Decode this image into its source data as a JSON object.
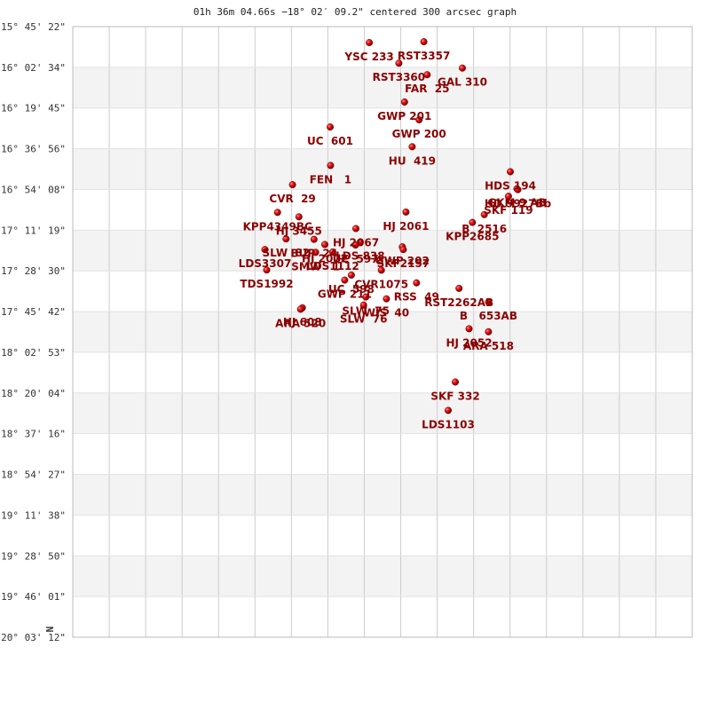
{
  "chart_data": {
    "type": "scatter",
    "title": "01h 36m 04.66s −18° 02′ 09.2\" centered 300 arcsec graph",
    "compass": "N",
    "y_ticks": [
      "-15° 45' 22\"",
      "-16° 02' 34\"",
      "-16° 19' 45\"",
      "-16° 36' 56\"",
      "-16° 54' 08\"",
      "-17° 11' 19\"",
      "-17° 28' 30\"",
      "-17° 45' 42\"",
      "-18° 02' 53\"",
      "-18° 20' 04\"",
      "-18° 37' 16\"",
      "-18° 54' 27\"",
      "-19° 11' 38\"",
      "-19° 28' 50\"",
      "-19° 46' 01\"",
      "-20° 03' 12\""
    ],
    "x_gridlines": 17,
    "x_range_arcsec": [
      -300,
      300
    ],
    "y_range_arcsec": [
      -300,
      300
    ],
    "band_colors": [
      "#f3f3f3",
      "#ffffff"
    ],
    "grid_color": "#cccccc",
    "point_color": "#cc0000",
    "label_color": "#8b0000",
    "points": [
      {
        "name": "YSC 233",
        "x": -12.8,
        "y": 284.3
      },
      {
        "name": "RST3357",
        "x": 40.1,
        "y": 285.2
      },
      {
        "name": "RST3360",
        "x": 15.8,
        "y": 264.1
      },
      {
        "name": "FAR  25",
        "x": 43.2,
        "y": 252.7
      },
      {
        "name": "GAL 310",
        "x": 77.4,
        "y": 259.3
      },
      {
        "name": "GWP 201",
        "x": 21.3,
        "y": 226.0
      },
      {
        "name": "GWP 200",
        "x": 35.4,
        "y": 208.4
      },
      {
        "name": "UC  601",
        "x": -50.7,
        "y": 201.4
      },
      {
        "name": "HU  419",
        "x": 28.7,
        "y": 182.0
      },
      {
        "name": "FEN   1",
        "x": -50.4,
        "y": 163.6
      },
      {
        "name": "HDS 194",
        "x": 123.8,
        "y": 157.4
      },
      {
        "name": "CVR  29",
        "x": -87.2,
        "y": 144.7
      },
      {
        "name": "GKM 9 AB",
        "x": 130.2,
        "y": 140.7
      },
      {
        "name": "HD 9927Bb",
        "x": 131.1,
        "y": 139.8
      },
      {
        "name": "SKF 119",
        "x": 122.0,
        "y": 133.3
      },
      {
        "name": "KPP4349BC",
        "x": -101.7,
        "y": 117.5
      },
      {
        "name": "HJ 3455",
        "x": -81.0,
        "y": 113.1
      },
      {
        "name": "HJ 2061",
        "x": 22.7,
        "y": 117.8
      },
      {
        "name": "B  2516",
        "x": 98.6,
        "y": 115.3
      },
      {
        "name": "KPP2685",
        "x": 87.1,
        "y": 107.6
      },
      {
        "name": "HJ 2067",
        "x": -25.8,
        "y": 101.6
      },
      {
        "name": "SLW  82",
        "x": -93.4,
        "y": 91.4
      },
      {
        "name": "BUP  24",
        "x": -66.4,
        "y": 91.0
      },
      {
        "name": "HJ 2072",
        "x": -55.9,
        "y": 85.9
      },
      {
        "name": "LDS 838",
        "x": -21.6,
        "y": 88.3
      },
      {
        "name": "UC  597",
        "x": -26.1,
        "y": 85.4
      },
      {
        "name": "LDS3307",
        "x": -113.9,
        "y": 80.9
      },
      {
        "name": "GWP 202",
        "x": 19.2,
        "y": 83.6
      },
      {
        "name": "SKF2157",
        "x": 20.1,
        "y": 80.9
      },
      {
        "name": "SMW   1",
        "x": -64.8,
        "y": 78.2
      },
      {
        "name": "LDS1112",
        "x": -48.2,
        "y": 78.6
      },
      {
        "name": "TDS1992",
        "x": -112.2,
        "y": 60.9
      },
      {
        "name": "CVR1075",
        "x": -1.1,
        "y": 60.7
      },
      {
        "name": "UC  598",
        "x": -30.2,
        "y": 55.9
      },
      {
        "name": "GWP 211",
        "x": -36.6,
        "y": 50.9
      },
      {
        "name": "RSS  49",
        "x": 32.9,
        "y": 48.2
      },
      {
        "name": "RST2262AB",
        "x": 74.1,
        "y": 42.8
      },
      {
        "name": "SLW  75",
        "x": -16.2,
        "y": 34.4
      },
      {
        "name": "WIS  40",
        "x": 3.8,
        "y": 32.5
      },
      {
        "name": "B   653AB",
        "x": 102.6,
        "y": 29.5
      },
      {
        "name": "SLW  76",
        "x": -18.3,
        "y": 26.4
      },
      {
        "name": "HJ 608",
        "x": -77.6,
        "y": 23.7
      },
      {
        "name": "ARA 520",
        "x": -79.3,
        "y": 22.3
      },
      {
        "name": "HJ 2052",
        "x": 83.8,
        "y": 3.1
      },
      {
        "name": "ARA 518",
        "x": 102.6,
        "y": 0.2
      },
      {
        "name": "SKF 332",
        "x": 70.5,
        "y": -49.2
      },
      {
        "name": "LDS1103",
        "x": 63.6,
        "y": -77.1
      }
    ]
  }
}
